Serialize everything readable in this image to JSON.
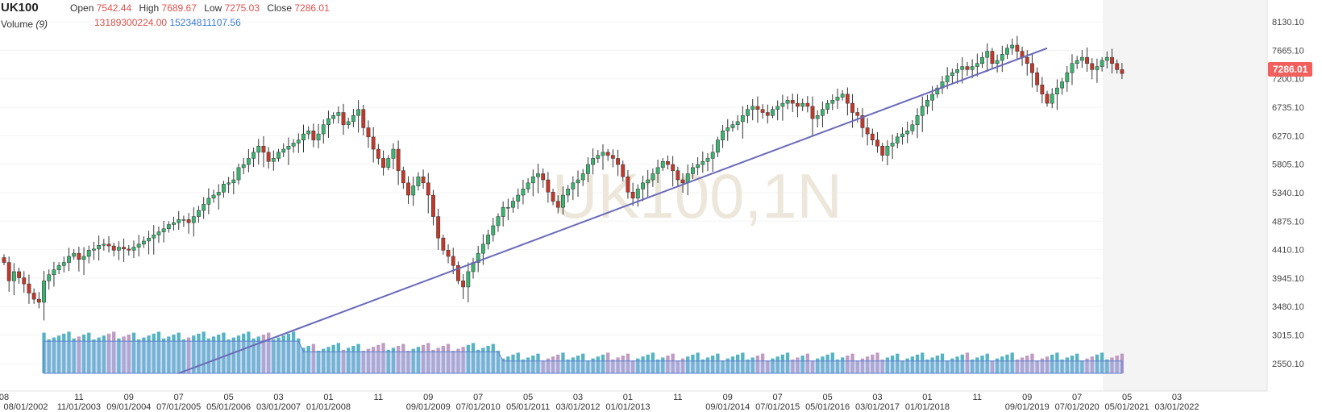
{
  "header": {
    "symbol": "UK100",
    "open_label": "Open",
    "open_value": "7542.44",
    "high_label": "High",
    "high_value": "7689.67",
    "low_label": "Low",
    "low_value": "7275.03",
    "close_label": "Close",
    "close_value": "7286.01",
    "volume_label": "Volume",
    "volume_period": "(9)",
    "volume_value_1": "13189300224.00",
    "volume_value_2": "15234811107.56"
  },
  "watermark": "UK100,1N",
  "price_tag": "7286.01",
  "colors": {
    "up": "#3cb371",
    "down": "#c0392b",
    "volume_up": "#3aa6b9",
    "volume_down": "#b48bb8",
    "trend_line": "#6a6ab8",
    "price_tag": "#f25f5c"
  },
  "y_axis": {
    "labels": [
      "8130.10",
      "7665.10",
      "7200.10",
      "6735.10",
      "6270.10",
      "5805.10",
      "5340.10",
      "4875.10",
      "4410.10",
      "3945.10",
      "3480.10",
      "3015.10",
      "2550.10"
    ]
  },
  "x_axis": {
    "top_row": [
      "08",
      "11",
      "09",
      "07",
      "05",
      "03",
      "01",
      "11",
      "09",
      "07",
      "05",
      "03",
      "01",
      "11",
      "09",
      "07",
      "05",
      "03",
      "01",
      "11",
      "09",
      "07",
      "05",
      "03"
    ],
    "bottom_row": [
      "08/01/2002",
      "11/01/2003",
      "09/01/2004",
      "07/01/2005",
      "05/01/2006",
      "03/01/2007",
      "01/01/2008",
      "09/01/2009",
      "07/01/2010",
      "05/01/2011",
      "03/01/2012",
      "01/01/2013",
      "09/01/2014",
      "07/01/2015",
      "05/01/2016",
      "03/01/2017",
      "01/01/2018",
      "09/01/2019",
      "07/01/2020",
      "05/01/2021",
      "03/01/2022"
    ]
  },
  "chart_data": {
    "type": "candlestick",
    "interval": "1 month",
    "start": "2002-08",
    "ylim": [
      2390,
      8250
    ],
    "closes": [
      4200,
      3900,
      4050,
      3950,
      3850,
      3700,
      3600,
      3550,
      3900,
      4000,
      4080,
      4150,
      4200,
      4300,
      4350,
      4250,
      4300,
      4400,
      4420,
      4480,
      4500,
      4470,
      4400,
      4450,
      4420,
      4400,
      4450,
      4500,
      4550,
      4600,
      4650,
      4700,
      4750,
      4820,
      4850,
      4900,
      4900,
      4850,
      4950,
      5050,
      5150,
      5250,
      5300,
      5350,
      5480,
      5500,
      5550,
      5750,
      5800,
      5900,
      6000,
      6100,
      6000,
      5850,
      5900,
      6000,
      6050,
      6100,
      6150,
      6200,
      6300,
      6350,
      6200,
      6300,
      6450,
      6550,
      6600,
      6650,
      6450,
      6500,
      6600,
      6700,
      6400,
      6250,
      6050,
      5900,
      5750,
      5900,
      6050,
      5700,
      5500,
      5300,
      5450,
      5600,
      5500,
      5300,
      4950,
      4600,
      4400,
      4300,
      4150,
      3900,
      3800,
      4050,
      4200,
      4350,
      4500,
      4650,
      4800,
      4950,
      5100,
      5100,
      5200,
      5300,
      5400,
      5500,
      5600,
      5650,
      5550,
      5350,
      5200,
      5100,
      5300,
      5400,
      5500,
      5550,
      5650,
      5800,
      5900,
      5950,
      6000,
      5950,
      5900,
      5800,
      5600,
      5350,
      5250,
      5400,
      5500,
      5550,
      5650,
      5750,
      5850,
      5800,
      5700,
      5550,
      5500,
      5650,
      5750,
      5800,
      5850,
      5900,
      6000,
      6200,
      6350,
      6400,
      6450,
      6500,
      6600,
      6700,
      6750,
      6700,
      6650,
      6600,
      6700,
      6750,
      6800,
      6850,
      6800,
      6750,
      6800,
      6750,
      6550,
      6600,
      6700,
      6800,
      6850,
      6900,
      6950,
      6800,
      6650,
      6600,
      6400,
      6300,
      6200,
      6100,
      5950,
      6100,
      6150,
      6250,
      6300,
      6350,
      6450,
      6600,
      6750,
      6850,
      6950,
      7050,
      7150,
      7250,
      7300,
      7350,
      7400,
      7350,
      7400,
      7450,
      7550,
      7650,
      7450,
      7500,
      7600,
      7700,
      7750,
      7650,
      7550,
      7450,
      7300,
      7100,
      6950,
      6800,
      6950,
      7050,
      7150,
      7300,
      7450,
      7500,
      7550,
      7450,
      7350,
      7400,
      7500,
      7550,
      7450,
      7350,
      7286.01
    ],
    "volume_series": [
      {
        "name": "volume"
      },
      {
        "name": "(9)"
      }
    ],
    "trend_line": {
      "from": [
        "2005-07",
        2390
      ],
      "to": [
        "2020-01",
        7700
      ]
    }
  }
}
